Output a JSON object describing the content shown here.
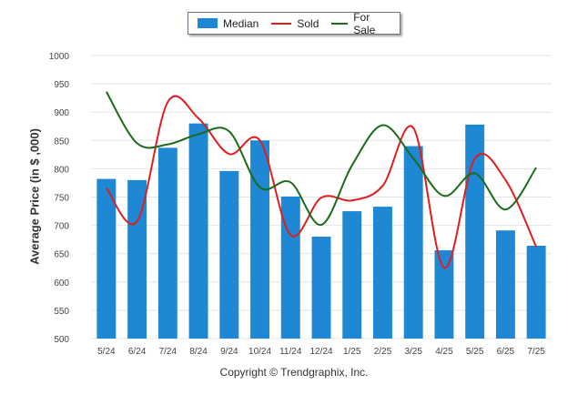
{
  "chart_data": {
    "type": "bar",
    "categories": [
      "5/24",
      "6/24",
      "7/24",
      "8/24",
      "9/24",
      "10/24",
      "11/24",
      "12/24",
      "1/25",
      "2/25",
      "3/25",
      "4/25",
      "5/25",
      "6/25",
      "7/25"
    ],
    "series": [
      {
        "name": "Median",
        "type": "bar",
        "color": "#1e88d4",
        "values": [
          782,
          780,
          837,
          880,
          796,
          850,
          751,
          680,
          725,
          733,
          840,
          656,
          878,
          691,
          664
        ]
      },
      {
        "name": "Sold",
        "type": "line",
        "color": "#e01e1e",
        "values": [
          766,
          707,
          918,
          889,
          826,
          850,
          683,
          749,
          744,
          770,
          872,
          625,
          818,
          780,
          662
        ]
      },
      {
        "name": "For Sale",
        "type": "line",
        "color": "#1a6b1a",
        "values": [
          936,
          845,
          843,
          861,
          866,
          767,
          776,
          701,
          806,
          877,
          818,
          752,
          792,
          728,
          802
        ]
      }
    ],
    "ylabel": "Average Price (in $ ,000)",
    "xlabel": "",
    "ylim": [
      500,
      1000
    ],
    "yticks": [
      500,
      550,
      600,
      650,
      700,
      750,
      800,
      850,
      900,
      950,
      1000
    ],
    "grid": true,
    "legend_position": "top"
  },
  "legend": {
    "median": "Median",
    "sold": "Sold",
    "for_sale": "For Sale"
  },
  "footer": {
    "copyright": "Copyright © Trendgraphix, Inc."
  }
}
